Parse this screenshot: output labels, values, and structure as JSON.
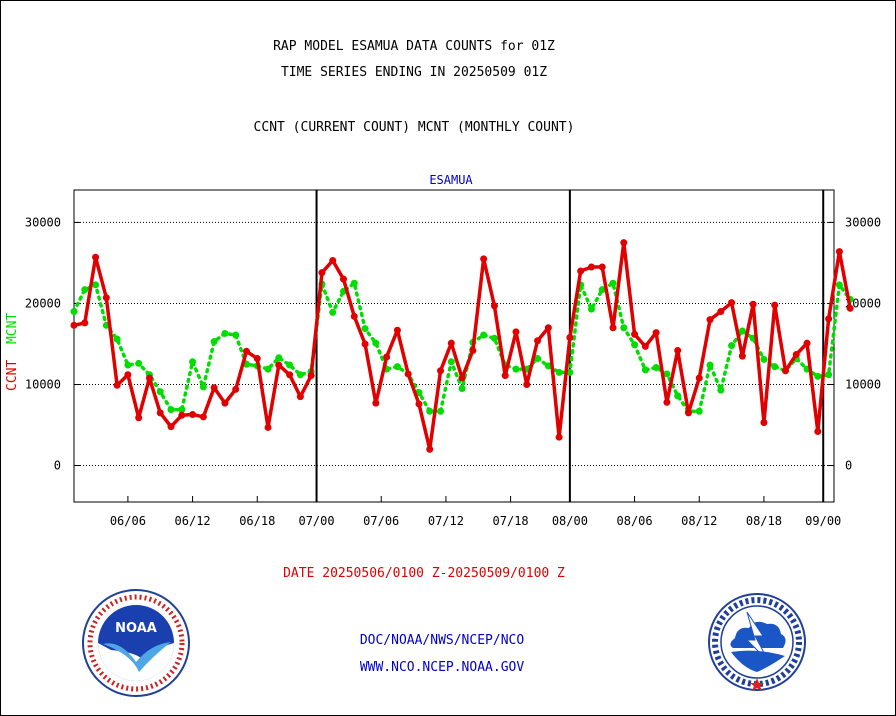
{
  "header": {
    "line1": "RAP MODEL ESAMUA DATA COUNTS for 01Z",
    "line2": "TIME SERIES ENDING IN 20250509 01Z",
    "line3": "CCNT (CURRENT COUNT) MCNT (MONTHLY COUNT)"
  },
  "station": "ESAMUA",
  "ylabel": {
    "ccnt": "CCNT",
    "mcnt": "MCNT"
  },
  "date_range": "DATE 20250506/0100 Z-20250509/0100 Z",
  "footer": {
    "line1": "DOC/NOAA/NWS/NCEP/NCO",
    "line2": "WWW.NCO.NCEP.NOAA.GOV"
  },
  "logos": {
    "left": "NOAA",
    "right": "NATIONAL WEATHER SERVICE"
  },
  "colors": {
    "ccnt": "#e00000",
    "mcnt": "#00dd00",
    "station": "#0000cc",
    "footer": "#0000cc"
  },
  "chart_data": {
    "type": "line",
    "ylim": [
      -4500,
      34000
    ],
    "yticks": [
      0,
      10000,
      20000,
      30000
    ],
    "ytick_labels": [
      "0",
      "10000",
      "20000",
      "30000"
    ],
    "xlim": [
      0,
      70.5
    ],
    "xticks": [
      {
        "x": 5,
        "label": "06/06"
      },
      {
        "x": 11,
        "label": "06/12"
      },
      {
        "x": 17,
        "label": "06/18"
      },
      {
        "x": 22.5,
        "label": "07/00"
      },
      {
        "x": 28.5,
        "label": "07/06"
      },
      {
        "x": 34.5,
        "label": "07/12"
      },
      {
        "x": 40.5,
        "label": "07/18"
      },
      {
        "x": 46,
        "label": "08/00"
      },
      {
        "x": 52,
        "label": "08/06"
      },
      {
        "x": 58,
        "label": "08/12"
      },
      {
        "x": 64,
        "label": "08/18"
      },
      {
        "x": 69.5,
        "label": "09/00"
      }
    ],
    "day_boundaries": [
      22.5,
      46,
      69.5
    ],
    "grid": "horizontal dotted",
    "series": [
      {
        "name": "CCNT",
        "values": [
          17300,
          17600,
          25700,
          20700,
          9900,
          11200,
          5900,
          10800,
          6500,
          4800,
          6200,
          6300,
          6000,
          9600,
          7700,
          9400,
          14100,
          13200,
          4700,
          12400,
          11200,
          8500,
          11100,
          23800,
          25300,
          23000,
          18400,
          15000,
          7700,
          13400,
          16700,
          11300,
          7600,
          2000,
          11700,
          15100,
          10800,
          14200,
          25500,
          19700,
          11100,
          16500,
          10000,
          15400,
          17000,
          3500,
          15800,
          24000,
          24500,
          24500,
          17000,
          27500,
          16200,
          14700,
          16400,
          7800,
          14200,
          6500,
          10800,
          18000,
          19000,
          20100,
          13500,
          19900,
          5300,
          19800,
          11700,
          13700,
          15100,
          4200,
          18100,
          26400,
          19400
        ]
      },
      {
        "name": "MCNT",
        "values": [
          19000,
          21700,
          22300,
          17300,
          15600,
          12400,
          12600,
          11200,
          9100,
          6900,
          6900,
          12800,
          9700,
          15300,
          16300,
          16100,
          12500,
          12300,
          11900,
          13300,
          12400,
          11200,
          11600,
          22400,
          18900,
          21500,
          22500,
          16900,
          15100,
          11900,
          12200,
          11300,
          9000,
          6700,
          6700,
          12800,
          9500,
          15200,
          16100,
          15700,
          12400,
          11900,
          11900,
          13200,
          12300,
          11500,
          11500,
          22300,
          19300,
          21700,
          22500,
          17000,
          14900,
          11800,
          12100,
          11300,
          8600,
          6700,
          6700,
          12400,
          9300,
          14800,
          16600,
          15700,
          13100,
          12200,
          11700,
          13200,
          11900,
          11000,
          11200,
          22300,
          20500
        ]
      }
    ]
  }
}
